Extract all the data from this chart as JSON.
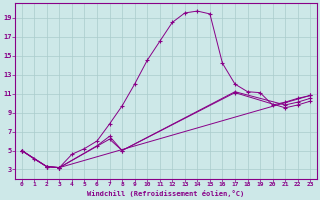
{
  "bg_color": "#cde8e8",
  "grid_color": "#aacccc",
  "line_color": "#880088",
  "marker": "+",
  "xlabel": "Windchill (Refroidissement éolien,°C)",
  "xlim": [
    -0.5,
    23.5
  ],
  "ylim": [
    2.0,
    20.5
  ],
  "xticks": [
    0,
    1,
    2,
    3,
    4,
    5,
    6,
    7,
    8,
    9,
    10,
    11,
    12,
    13,
    14,
    15,
    16,
    17,
    18,
    19,
    20,
    21,
    22,
    23
  ],
  "yticks": [
    3,
    5,
    7,
    9,
    11,
    13,
    15,
    17,
    19
  ],
  "curve1_x": [
    0,
    1,
    2,
    3,
    4,
    5,
    6,
    7,
    8,
    9,
    10,
    11,
    12,
    13,
    14,
    15,
    16,
    17,
    18,
    19,
    20,
    21,
    22,
    23
  ],
  "curve1_y": [
    5.0,
    4.1,
    3.3,
    3.2,
    4.6,
    5.2,
    6.0,
    7.8,
    9.7,
    12.0,
    14.5,
    16.5,
    18.5,
    19.5,
    19.7,
    19.4,
    14.2,
    12.0,
    11.2,
    11.1,
    9.8,
    10.1,
    10.5,
    10.8
  ],
  "curve2_x": [
    0,
    2,
    3,
    23
  ],
  "curve2_y": [
    5.0,
    3.3,
    3.2,
    10.8
  ],
  "curve3_x": [
    0,
    2,
    3,
    7,
    8,
    17,
    21,
    22,
    23
  ],
  "curve3_y": [
    5.0,
    3.3,
    3.2,
    6.2,
    5.0,
    11.2,
    9.8,
    10.1,
    10.5
  ],
  "curve4_x": [
    0,
    2,
    3,
    6,
    7,
    8,
    17,
    21,
    22,
    23
  ],
  "curve4_y": [
    5.0,
    3.3,
    3.2,
    5.5,
    6.5,
    5.0,
    11.1,
    9.5,
    9.8,
    10.2
  ]
}
